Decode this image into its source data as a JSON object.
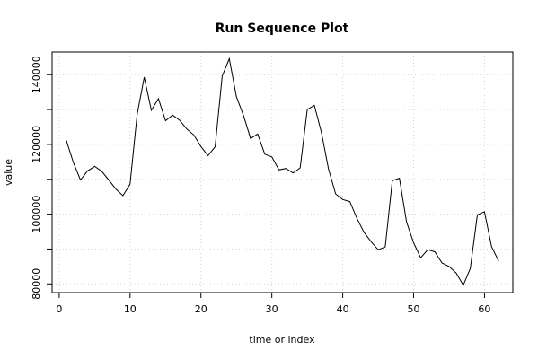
{
  "chart_data": {
    "type": "line",
    "title": "Run Sequence Plot",
    "xlabel": "time or index",
    "ylabel": "value",
    "xlim": [
      -1,
      64
    ],
    "ylim": [
      77500,
      146500
    ],
    "xticks": [
      0,
      10,
      20,
      30,
      40,
      50,
      60
    ],
    "xtick_labels": [
      "0",
      "10",
      "20",
      "30",
      "40",
      "50",
      "60"
    ],
    "yticks": [
      80000,
      100000,
      120000,
      140000
    ],
    "ytick_labels": [
      "80000",
      "100000",
      "120000",
      "140000"
    ],
    "y_minor_ticks": [
      90000,
      110000,
      130000
    ],
    "grid": true,
    "line_color": "#000000",
    "grid_color": "#d3d3d3",
    "series": [
      {
        "x": [
          1,
          2,
          3,
          4,
          5,
          6,
          7,
          8,
          9,
          10,
          11,
          12,
          13,
          14,
          15,
          16,
          17,
          18,
          19,
          20,
          21,
          22,
          23,
          24,
          25,
          26,
          27,
          28,
          29,
          30,
          31,
          32,
          33,
          34,
          35,
          36,
          37,
          38,
          39,
          40,
          41,
          42,
          43,
          44,
          45,
          46,
          47,
          48,
          49,
          50,
          51,
          52,
          53,
          54,
          55,
          56,
          57,
          58,
          59,
          60,
          61,
          62
        ],
        "values": [
          121200,
          114800,
          109800,
          112400,
          113700,
          112300,
          109800,
          107200,
          105300,
          108600,
          128600,
          139300,
          129800,
          133100,
          126800,
          128400,
          126900,
          124400,
          122700,
          119400,
          116800,
          119300,
          139600,
          144600,
          133700,
          128300,
          121700,
          123000,
          117200,
          116400,
          112700,
          113100,
          111800,
          113300,
          130000,
          131200,
          123400,
          112900,
          105800,
          104200,
          103600,
          98800,
          94800,
          92100,
          89800,
          90600,
          109600,
          110300,
          97800,
          91800,
          87500,
          89800,
          89200,
          86000,
          85000,
          83100,
          79600,
          84400,
          99800,
          100700,
          90700,
          86500
        ]
      }
    ]
  }
}
